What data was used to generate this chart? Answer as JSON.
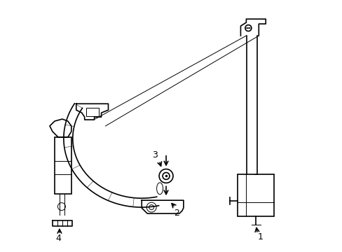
{
  "bg_color": "#ffffff",
  "line_color": "#000000",
  "line_width": 1.2,
  "thin_line": 0.7,
  "fig_width": 4.89,
  "fig_height": 3.6,
  "dpi": 100
}
